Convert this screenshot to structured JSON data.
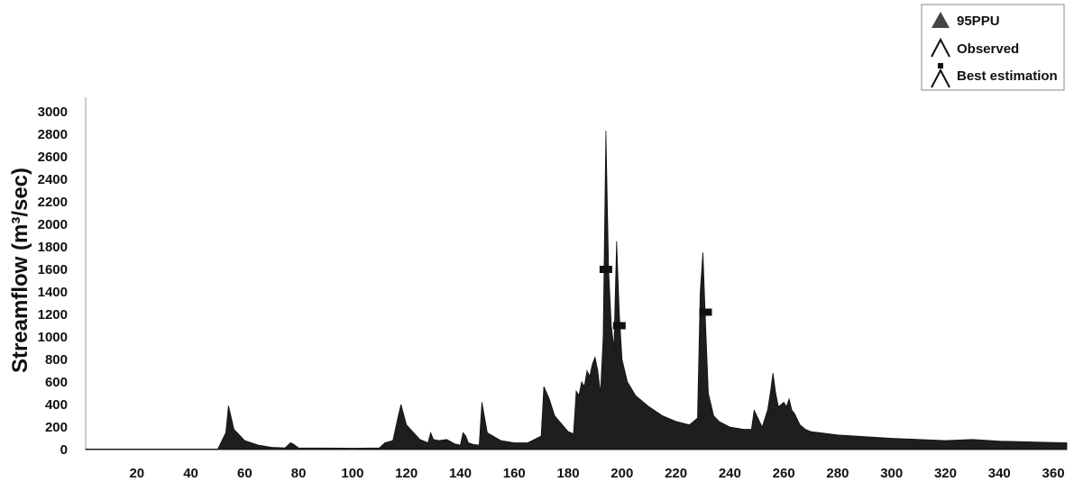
{
  "chart_data": {
    "type": "area",
    "ylabel": "Streamflow (m³/sec)",
    "xlabel": "",
    "xlim": [
      1,
      365
    ],
    "ylim": [
      0,
      3000
    ],
    "x_ticks": [
      20,
      40,
      60,
      80,
      100,
      120,
      140,
      160,
      180,
      200,
      220,
      240,
      260,
      280,
      300,
      320,
      340,
      360
    ],
    "y_ticks": [
      0,
      200,
      400,
      600,
      800,
      1000,
      1200,
      1400,
      1600,
      1800,
      2000,
      2200,
      2400,
      2600,
      2800,
      3000
    ],
    "grid": false,
    "legend_position": "top-right",
    "legend": [
      "95PPU",
      "Observed",
      "Best estimation"
    ],
    "series": [
      {
        "name": "95PPU",
        "x": [
          1,
          50,
          53,
          54,
          56,
          60,
          65,
          70,
          75,
          77,
          78,
          80,
          100,
          110,
          112,
          115,
          117,
          118,
          120,
          125,
          128,
          129,
          130,
          132,
          135,
          138,
          140,
          141,
          142,
          143,
          145,
          147,
          148,
          150,
          155,
          160,
          165,
          170,
          171,
          173,
          175,
          180,
          182,
          183,
          184,
          185,
          186,
          187,
          188,
          189,
          190,
          191,
          192,
          193,
          194,
          195,
          196,
          197,
          198,
          199,
          200,
          202,
          205,
          210,
          215,
          220,
          225,
          228,
          229,
          230,
          231,
          232,
          234,
          236,
          240,
          245,
          248,
          249,
          250,
          252,
          254,
          255,
          256,
          257,
          258,
          259,
          260,
          261,
          262,
          263,
          264,
          266,
          268,
          270,
          280,
          300,
          320,
          330,
          340,
          365
        ],
        "low": [
          0,
          0,
          0,
          0,
          0,
          0,
          0,
          0,
          0,
          0,
          0,
          0,
          0,
          0,
          0,
          0,
          0,
          0,
          0,
          0,
          0,
          0,
          0,
          0,
          0,
          0,
          0,
          0,
          0,
          0,
          0,
          0,
          0,
          0,
          0,
          0,
          0,
          0,
          0,
          0,
          0,
          0,
          0,
          0,
          0,
          0,
          0,
          0,
          0,
          0,
          0,
          0,
          0,
          0,
          0,
          0,
          0,
          0,
          0,
          0,
          0,
          0,
          0,
          0,
          0,
          0,
          0,
          0,
          0,
          0,
          0,
          0,
          0,
          0,
          0,
          0,
          0,
          0,
          0,
          0,
          0,
          0,
          0,
          0,
          0,
          0,
          0,
          0,
          0,
          0,
          0,
          0,
          0,
          0,
          0,
          0,
          0,
          0,
          0,
          0
        ],
        "high": [
          5,
          5,
          150,
          390,
          180,
          80,
          40,
          20,
          15,
          60,
          50,
          15,
          12,
          15,
          60,
          80,
          300,
          400,
          220,
          90,
          60,
          150,
          90,
          80,
          90,
          50,
          40,
          150,
          120,
          60,
          45,
          40,
          420,
          150,
          80,
          60,
          60,
          120,
          560,
          450,
          300,
          160,
          140,
          520,
          480,
          600,
          560,
          700,
          650,
          760,
          820,
          700,
          500,
          1000,
          2830,
          1600,
          1100,
          900,
          1850,
          1200,
          800,
          600,
          480,
          380,
          300,
          250,
          220,
          280,
          1400,
          1750,
          1100,
          500,
          300,
          250,
          200,
          180,
          180,
          350,
          300,
          200,
          350,
          500,
          680,
          500,
          380,
          400,
          420,
          380,
          450,
          350,
          320,
          220,
          180,
          160,
          130,
          100,
          80,
          90,
          75,
          60
        ]
      },
      {
        "name": "Best estimation",
        "x": [
          194,
          199,
          231
        ],
        "y": [
          1600,
          1100,
          1220
        ]
      }
    ]
  }
}
